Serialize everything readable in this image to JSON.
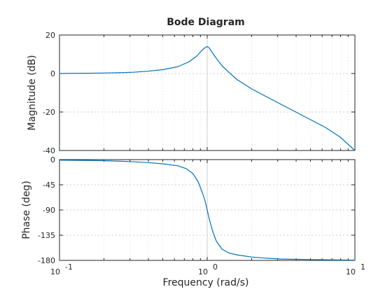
{
  "chart_data": {
    "type": "line",
    "title": "Bode Diagram",
    "xlabel": "Frequency  (rad/s)",
    "x_scale": "log",
    "xlim": [
      0.1,
      10
    ],
    "x_ticks": [
      {
        "base": "10",
        "exponent": "-1"
      },
      {
        "base": "10",
        "exponent": "0"
      },
      {
        "base": "10",
        "exponent": "1"
      }
    ],
    "grid": true,
    "line_color": "#0072BD",
    "panels": [
      {
        "name": "magnitude",
        "ylabel": "Magnitude (dB)",
        "ylim": [
          -40,
          20
        ],
        "yticks": [
          20,
          0,
          -20,
          -40
        ],
        "ytick_labels": [
          "20",
          "0",
          "-20",
          "-40"
        ],
        "series": [
          {
            "x": [
              0.1,
              0.126,
              0.158,
              0.2,
              0.251,
              0.316,
              0.398,
              0.5,
              0.631,
              0.75,
              0.85,
              0.92,
              0.97,
              1.0,
              1.03,
              1.08,
              1.15,
              1.26,
              1.41,
              1.58,
              2.0,
              2.51,
              3.16,
              3.98,
              5.01,
              6.31,
              7.94,
              10.0
            ],
            "y": [
              0.0,
              0.1,
              0.15,
              0.25,
              0.4,
              0.65,
              1.2,
              2.0,
              3.5,
              6.0,
              9.0,
              12.0,
              13.5,
              14.0,
              13.3,
              11.0,
              8.0,
              4.0,
              0.5,
              -3.0,
              -8.0,
              -12.0,
              -16.0,
              -20.0,
              -24.0,
              -28.0,
              -33.0,
              -40.0
            ]
          }
        ]
      },
      {
        "name": "phase",
        "ylabel": "Phase (deg)",
        "ylim": [
          -180,
          0
        ],
        "yticks": [
          0,
          -45,
          -90,
          -135,
          -180
        ],
        "ytick_labels": [
          "0",
          "-45",
          "-90",
          "-135",
          "-180"
        ],
        "series": [
          {
            "x": [
              0.1,
              0.126,
              0.158,
              0.2,
              0.251,
              0.316,
              0.398,
              0.5,
              0.631,
              0.72,
              0.8,
              0.87,
              0.93,
              0.97,
              1.0,
              1.03,
              1.08,
              1.15,
              1.26,
              1.41,
              1.58,
              2.0,
              2.51,
              3.16,
              5.01,
              10.0
            ],
            "y": [
              -1.0,
              -1.3,
              -1.6,
              -2.0,
              -2.8,
              -3.8,
              -5.4,
              -7.5,
              -11.0,
              -16.0,
              -25.0,
              -40.0,
              -60.0,
              -75.0,
              -90.0,
              -105.0,
              -125.0,
              -145.0,
              -160.0,
              -167.0,
              -170.0,
              -174.0,
              -176.0,
              -177.5,
              -178.5,
              -179.5
            ]
          }
        ]
      }
    ]
  }
}
